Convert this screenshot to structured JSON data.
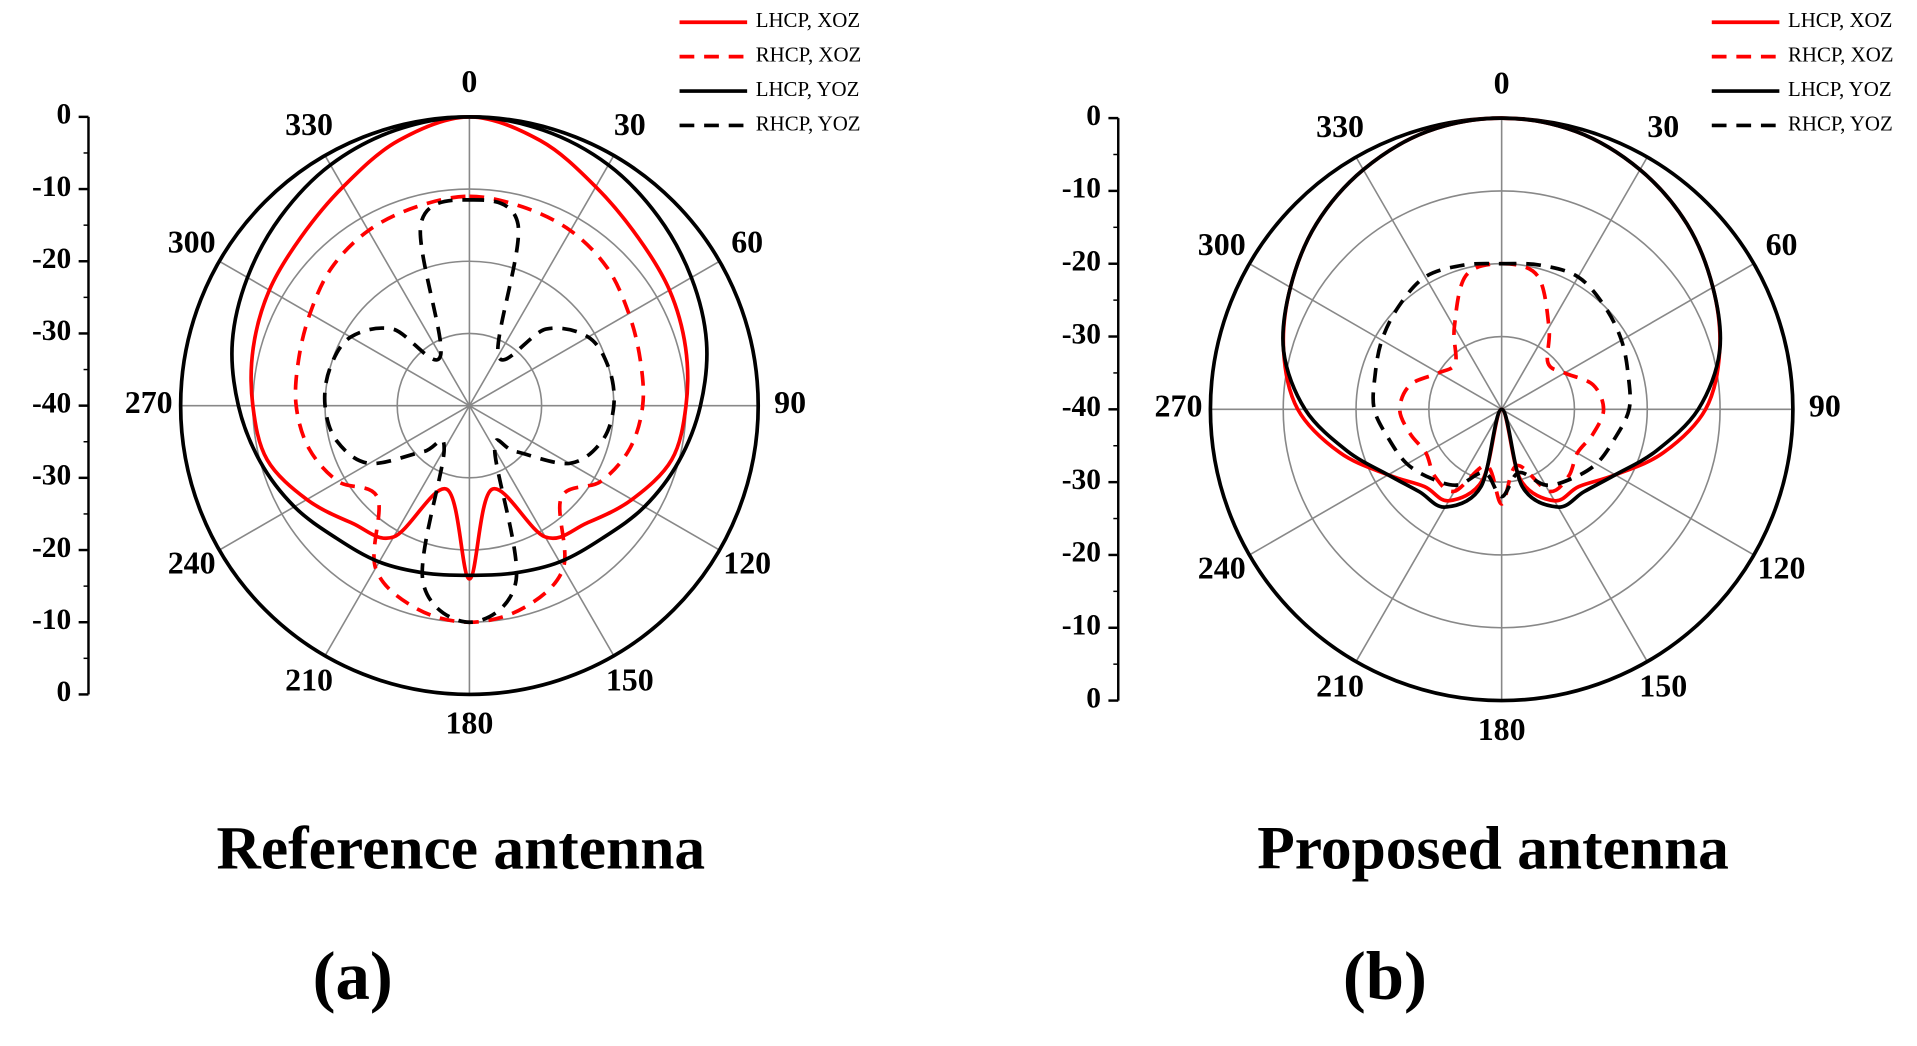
{
  "chart_data": [
    {
      "type": "polar",
      "title": "Reference antenna",
      "label": "(a)",
      "rlim": [
        -40,
        0
      ],
      "rticks": [
        0,
        -10,
        -20,
        -30,
        -40
      ],
      "angle_ticks": [
        0,
        30,
        60,
        90,
        120,
        150,
        180,
        210,
        240,
        270,
        300,
        330
      ],
      "theta": [
        0,
        15,
        30,
        45,
        60,
        75,
        90,
        105,
        120,
        135,
        150,
        165,
        180,
        195,
        210,
        225,
        240,
        255,
        270,
        285,
        300,
        315,
        330,
        345
      ],
      "series": [
        {
          "name": "LHCP, XOZ",
          "color": "#ff0000",
          "linestyle": "solid",
          "values": [
            0,
            -2,
            -5,
            -7,
            -8,
            -9,
            -10,
            -11,
            -14,
            -17,
            -19,
            -28,
            -16,
            -28,
            -19,
            -17,
            -14,
            -11,
            -10,
            -9,
            -8,
            -7,
            -5,
            -2
          ]
        },
        {
          "name": "RHCP, XOZ",
          "color": "#ff0000",
          "linestyle": "dashed",
          "values": [
            -11,
            -11.5,
            -12,
            -13,
            -14.5,
            -15.5,
            -16,
            -17,
            -19,
            -22,
            -14,
            -11,
            -10,
            -11,
            -14,
            -22,
            -19,
            -17,
            -16,
            -15.5,
            -14.5,
            -13,
            -12,
            -11.5
          ]
        },
        {
          "name": "LHCP, YOZ",
          "color": "#000000",
          "linestyle": "solid",
          "values": [
            0,
            -0.5,
            -1.5,
            -3,
            -4.5,
            -6,
            -8,
            -10,
            -12,
            -14,
            -15,
            -16,
            -16.5,
            -16,
            -15,
            -14,
            -12,
            -10,
            -8,
            -6,
            -4.5,
            -3,
            -1.5,
            -0.5
          ]
        },
        {
          "name": "RHCP, YOZ",
          "color": "#000000",
          "linestyle": "dashed",
          "values": [
            -11.5,
            -14,
            -32,
            -25,
            -21,
            -20,
            -20,
            -21,
            -24,
            -31,
            -33,
            -15,
            -10,
            -15,
            -33,
            -31,
            -24,
            -21,
            -20,
            -20,
            -21,
            -25,
            -32,
            -14
          ]
        }
      ]
    },
    {
      "type": "polar",
      "title": "Proposed antenna",
      "label": "(b)",
      "rlim": [
        -40,
        0
      ],
      "rticks": [
        0,
        -10,
        -20,
        -30,
        -40
      ],
      "angle_ticks": [
        0,
        30,
        60,
        90,
        120,
        150,
        180,
        210,
        240,
        270,
        300,
        330
      ],
      "theta": [
        0,
        15,
        30,
        45,
        60,
        75,
        90,
        105,
        120,
        135,
        150,
        165,
        180,
        195,
        210,
        225,
        240,
        255,
        270,
        285,
        300,
        315,
        330,
        345
      ],
      "series": [
        {
          "name": "LHCP, XOZ",
          "color": "#ff0000",
          "linestyle": "solid",
          "values": [
            0,
            -0.5,
            -2,
            -4,
            -6.5,
            -9,
            -12,
            -17,
            -22,
            -25,
            -25.5,
            -30,
            -40,
            -30,
            -25.5,
            -25,
            -22,
            -17,
            -12,
            -9,
            -6.5,
            -4,
            -2,
            -0.5
          ]
        },
        {
          "name": "RHCP, XOZ",
          "color": "#ff0000",
          "linestyle": "dashed",
          "values": [
            -20,
            -21,
            -27,
            -31,
            -30,
            -27,
            -26,
            -27,
            -28,
            -27,
            -27,
            -32,
            -27,
            -32,
            -27,
            -27,
            -28,
            -27,
            -26,
            -27,
            -30,
            -31,
            -27,
            -21
          ]
        },
        {
          "name": "LHCP, YOZ",
          "color": "#000000",
          "linestyle": "solid",
          "values": [
            0,
            -0.5,
            -2,
            -4,
            -6.5,
            -9,
            -13,
            -18,
            -22,
            -24,
            -24.5,
            -29,
            -40,
            -29,
            -24.5,
            -24,
            -22,
            -18,
            -13,
            -9,
            -6.5,
            -4,
            -2,
            -0.5
          ]
        },
        {
          "name": "RHCP, YOZ",
          "color": "#000000",
          "linestyle": "dashed",
          "values": [
            -20,
            -19.5,
            -19,
            -20,
            -21,
            -22,
            -22.5,
            -24,
            -25,
            -26.5,
            -28,
            -31,
            -28,
            -31,
            -28,
            -26.5,
            -25,
            -24,
            -22.5,
            -22,
            -21,
            -20,
            -19,
            -19.5
          ]
        }
      ]
    }
  ]
}
